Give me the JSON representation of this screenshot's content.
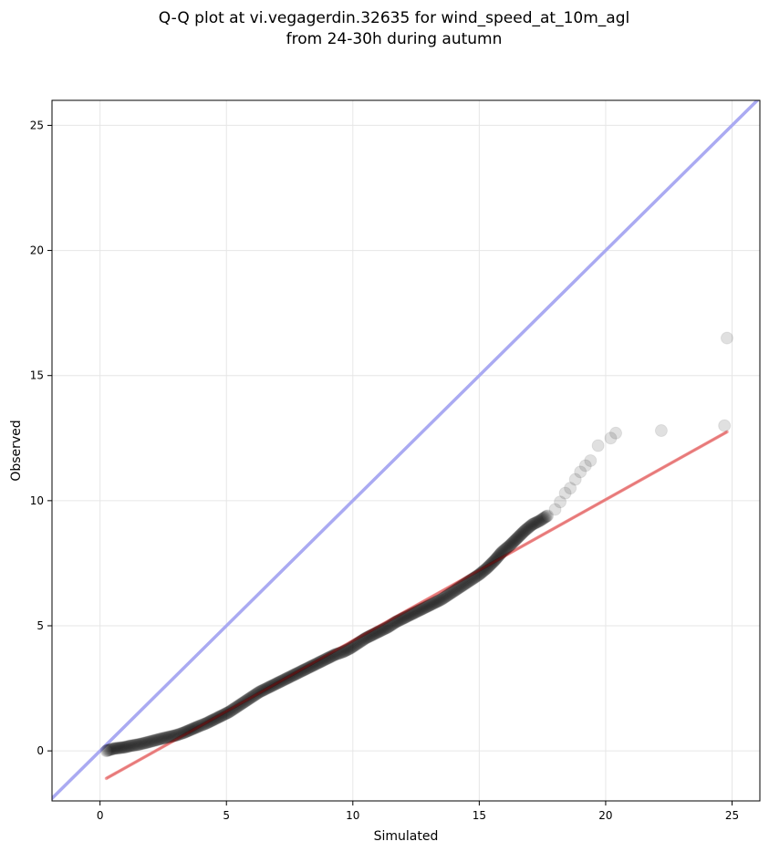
{
  "chart_data": {
    "type": "scatter",
    "title_line1": "Q-Q plot at vi.vegagerdin.32635 for wind_speed_at_10m_agl",
    "title_line2": "from 24-30h during autumn",
    "xlabel": "Simulated",
    "ylabel": "Observed",
    "xlim": [
      -1.9,
      26.1
    ],
    "ylim": [
      -2.0,
      26.0
    ],
    "xticks": [
      0,
      5,
      10,
      15,
      20,
      25
    ],
    "yticks": [
      0,
      5,
      10,
      15,
      20,
      25
    ],
    "grid": true,
    "series": [
      {
        "type": "scatter",
        "color": "#000000",
        "points": [
          [
            0.25,
            0.0
          ],
          [
            0.4,
            0.05
          ],
          [
            0.6,
            0.1
          ],
          [
            0.8,
            0.12
          ],
          [
            1.0,
            0.15
          ],
          [
            1.2,
            0.2
          ],
          [
            1.5,
            0.25
          ],
          [
            1.8,
            0.32
          ],
          [
            2.1,
            0.4
          ],
          [
            2.4,
            0.48
          ],
          [
            2.7,
            0.55
          ],
          [
            3.0,
            0.62
          ],
          [
            3.3,
            0.72
          ],
          [
            3.6,
            0.85
          ],
          [
            3.9,
            0.98
          ],
          [
            4.2,
            1.1
          ],
          [
            4.5,
            1.25
          ],
          [
            4.8,
            1.4
          ],
          [
            5.1,
            1.55
          ],
          [
            5.4,
            1.75
          ],
          [
            5.7,
            1.95
          ],
          [
            6.0,
            2.15
          ],
          [
            6.3,
            2.35
          ],
          [
            6.6,
            2.5
          ],
          [
            6.9,
            2.65
          ],
          [
            7.2,
            2.8
          ],
          [
            7.5,
            2.95
          ],
          [
            7.8,
            3.1
          ],
          [
            8.1,
            3.25
          ],
          [
            8.4,
            3.4
          ],
          [
            8.7,
            3.55
          ],
          [
            9.0,
            3.7
          ],
          [
            9.3,
            3.85
          ],
          [
            9.6,
            3.95
          ],
          [
            9.9,
            4.1
          ],
          [
            10.2,
            4.3
          ],
          [
            10.5,
            4.5
          ],
          [
            10.8,
            4.65
          ],
          [
            11.1,
            4.8
          ],
          [
            11.4,
            4.95
          ],
          [
            11.7,
            5.15
          ],
          [
            12.0,
            5.3
          ],
          [
            12.3,
            5.45
          ],
          [
            12.6,
            5.6
          ],
          [
            12.9,
            5.75
          ],
          [
            13.2,
            5.9
          ],
          [
            13.5,
            6.05
          ],
          [
            13.8,
            6.25
          ],
          [
            14.1,
            6.45
          ],
          [
            14.4,
            6.65
          ],
          [
            14.7,
            6.85
          ],
          [
            15.0,
            7.05
          ],
          [
            15.3,
            7.3
          ],
          [
            15.6,
            7.6
          ],
          [
            15.9,
            7.95
          ],
          [
            16.2,
            8.2
          ],
          [
            16.5,
            8.5
          ],
          [
            16.8,
            8.8
          ],
          [
            17.1,
            9.05
          ],
          [
            17.4,
            9.2
          ],
          [
            17.7,
            9.4
          ],
          [
            18.0,
            9.65
          ],
          [
            18.2,
            9.95
          ],
          [
            18.4,
            10.3
          ],
          [
            18.6,
            10.5
          ],
          [
            18.8,
            10.85
          ],
          [
            19.0,
            11.15
          ],
          [
            19.2,
            11.4
          ],
          [
            19.4,
            11.6
          ],
          [
            19.7,
            12.2
          ],
          [
            20.2,
            12.5
          ],
          [
            20.4,
            12.7
          ],
          [
            22.2,
            12.8
          ],
          [
            24.7,
            13.0
          ],
          [
            24.8,
            16.5
          ]
        ]
      }
    ],
    "lines": [
      {
        "name": "",
        "color": "#aaaaf2",
        "x": [
          -1.9,
          26.1
        ],
        "y": [
          -1.9,
          26.1
        ]
      },
      {
        "name": "",
        "color": "#f5a3a3",
        "x": [
          0.25,
          24.8
        ],
        "y": [
          -1.1,
          12.75
        ]
      }
    ]
  }
}
